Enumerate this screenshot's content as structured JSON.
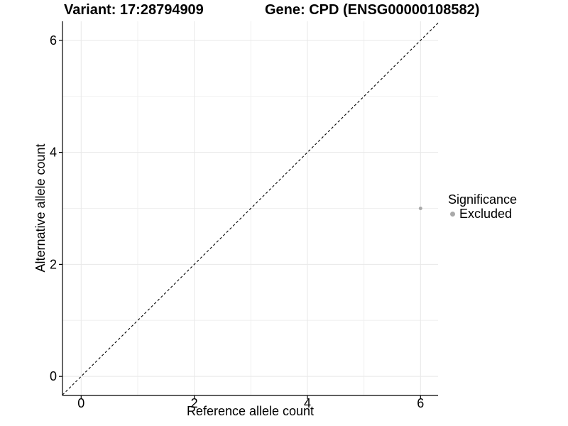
{
  "chart_data": {
    "type": "scatter",
    "title_left": "Variant: 17:28794909",
    "title_right": "Gene: CPD (ENSG00000108582)",
    "xlabel": "Reference allele count",
    "ylabel": "Alternative allele count",
    "xlim": [
      -0.33,
      6.31
    ],
    "ylim": [
      -0.34,
      6.34
    ],
    "xticks": [
      0,
      2,
      4,
      6
    ],
    "yticks": [
      0,
      2,
      4,
      6
    ],
    "grid_values": [
      0,
      1,
      2,
      3,
      4,
      5,
      6
    ],
    "grid": true,
    "identity_line": {
      "style": "dashed",
      "color": "#000000",
      "from": -0.33,
      "to": 6.31
    },
    "series": [
      {
        "name": "Excluded",
        "color": "#a9a9a9",
        "points": [
          {
            "x": 6,
            "y": 3
          }
        ]
      }
    ],
    "legend": {
      "title": "Significance",
      "position": "right",
      "entries": [
        {
          "label": "Excluded",
          "color": "#a9a9a9"
        }
      ]
    }
  },
  "colors": {
    "background": "#ffffff",
    "text": "#000000",
    "axis": "#000000",
    "grid_major": "#e8e8e8",
    "grid_minor": "#f0f0f0",
    "point": "#a9a9a9"
  }
}
